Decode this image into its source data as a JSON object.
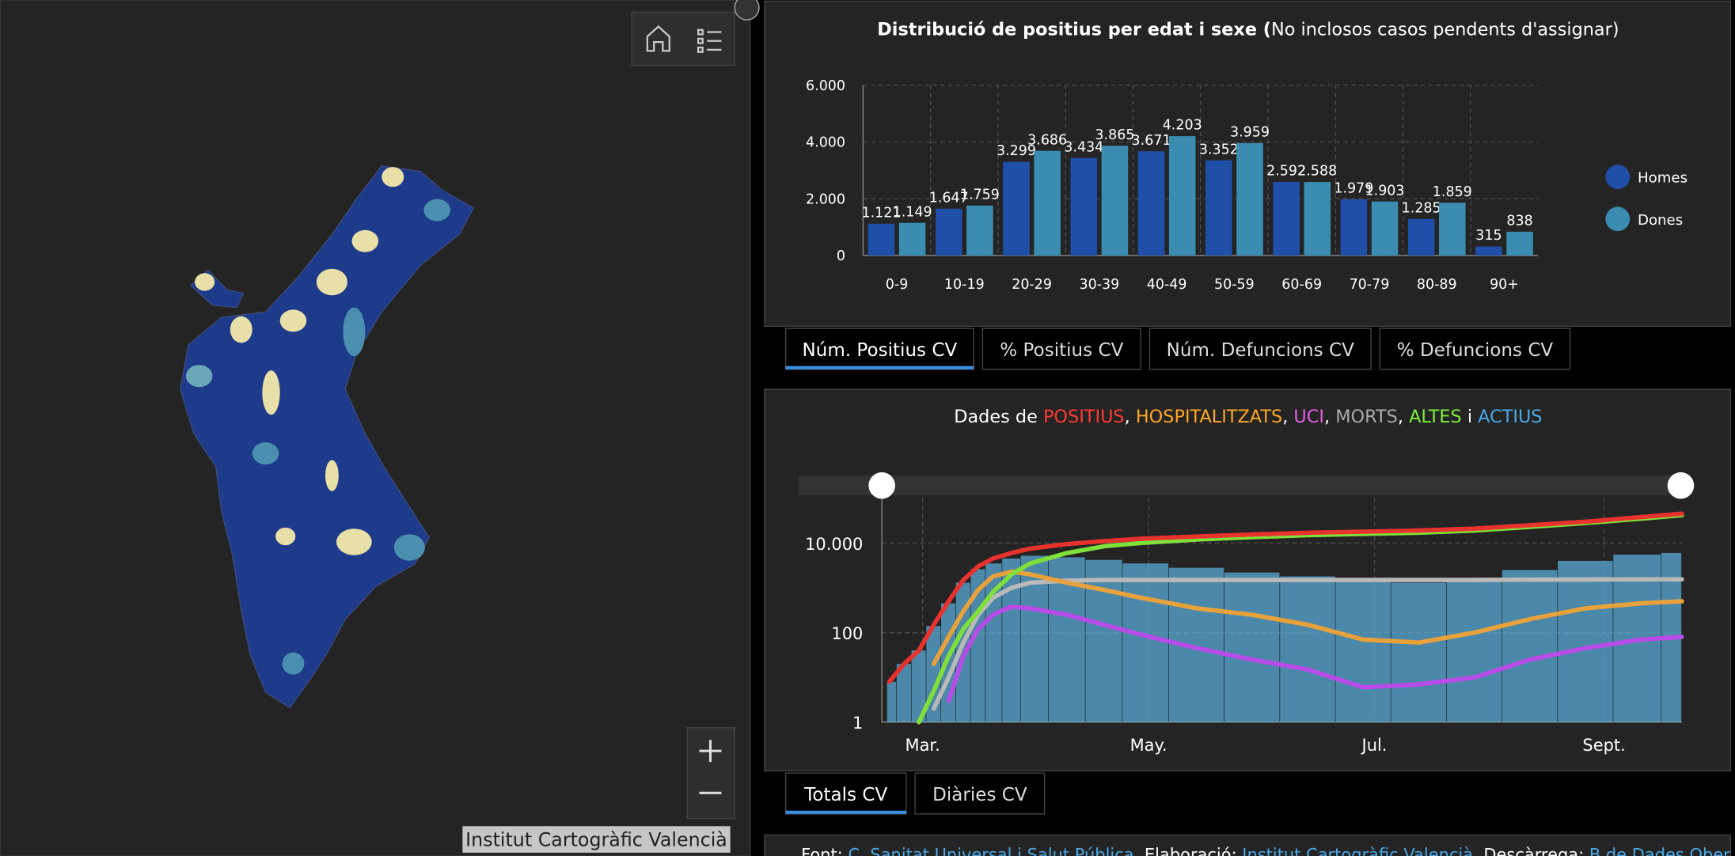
{
  "map": {
    "attribution": "Institut Cartogràfic Valencià"
  },
  "chart_data": [
    {
      "type": "bar",
      "title_bold": "Distribució de positius per edat i sexe (",
      "title_rest": "No inclosos casos pendents d'assignar)",
      "categories": [
        "0-9",
        "10-19",
        "20-29",
        "30-39",
        "40-49",
        "50-59",
        "60-69",
        "70-79",
        "80-89",
        "90+"
      ],
      "series": [
        {
          "name": "Homes",
          "color": "#1f4fa8",
          "values": [
            1121,
            1647,
            3299,
            3434,
            3671,
            3352,
            2592,
            1979,
            1285,
            315
          ],
          "value_labels": [
            "1.121",
            "1.647",
            "3.299",
            "3.434",
            "3.671",
            "3.352",
            "2.592",
            "1.979",
            "1.285",
            "315"
          ]
        },
        {
          "name": "Dones",
          "color": "#3a8db0",
          "values": [
            1149,
            1759,
            3686,
            3865,
            4203,
            3959,
            2588,
            1903,
            1859,
            838
          ],
          "value_labels": [
            "1.149",
            "1.759",
            "3.686",
            "3.865",
            "4.203",
            "3.959",
            "2.588",
            "1.903",
            "1.859",
            "838"
          ]
        }
      ],
      "ylim": [
        0,
        6000
      ],
      "yticks": [
        0,
        {
          "value": 2000,
          "label": "2.000"
        },
        {
          "value": 4000,
          "label": "4.000"
        },
        {
          "value": 6000,
          "label": "6.000"
        }
      ],
      "grid": true,
      "legend": "right"
    },
    {
      "type": "line",
      "title_parts": [
        {
          "text": "Dades de ",
          "color": "#ffffff"
        },
        {
          "text": "POSITIUS",
          "color": "#ff3b30"
        },
        {
          "text": ", ",
          "color": "#ffffff"
        },
        {
          "text": "HOSPITALITZATS",
          "color": "#ffa726"
        },
        {
          "text": ", ",
          "color": "#ffffff"
        },
        {
          "text": "UCI",
          "color": "#e75ce8"
        },
        {
          "text": ", ",
          "color": "#ffffff"
        },
        {
          "text": "MORTS",
          "color": "#aaaaaa"
        },
        {
          "text": ", ",
          "color": "#ffffff"
        },
        {
          "text": "ALTES",
          "color": "#7cf03a"
        },
        {
          "text": " i ",
          "color": "#ffffff"
        },
        {
          "text": "ACTIUS",
          "color": "#4aa8e8"
        }
      ],
      "x": [
        52,
        56,
        60,
        64,
        68,
        72,
        76,
        80,
        85,
        90,
        100,
        110,
        120,
        135,
        150,
        165,
        180,
        195,
        210,
        225,
        240,
        255,
        266
      ],
      "series": [
        {
          "mark": "bar",
          "color": "#5aa9d6",
          "values": [
            8,
            20,
            40,
            140,
            450,
            1300,
            2600,
            3500,
            4500,
            5200,
            4800,
            4200,
            3500,
            2800,
            2200,
            1800,
            1500,
            1300,
            1600,
            2500,
            4000,
            5500,
            6000
          ]
        },
        {
          "color": "#b9b9b9",
          "values": [
            null,
            null,
            null,
            2,
            10,
            60,
            250,
            600,
            1000,
            1300,
            1450,
            1500,
            1500,
            1500,
            1500,
            1500,
            1500,
            1500,
            1500,
            1520,
            1530,
            1540,
            1550
          ]
        },
        {
          "color": "#e9a23b",
          "values": [
            null,
            null,
            null,
            20,
            80,
            300,
            900,
            1800,
            2300,
            2000,
            1300,
            900,
            600,
            350,
            250,
            150,
            70,
            60,
            100,
            200,
            350,
            450,
            500
          ]
        },
        {
          "color": "#b94be8",
          "values": [
            null,
            null,
            null,
            null,
            3,
            30,
            120,
            250,
            380,
            350,
            250,
            150,
            90,
            45,
            25,
            15,
            6,
            7,
            10,
            25,
            45,
            70,
            80
          ]
        },
        {
          "color": "#7fe03a",
          "values": [
            null,
            null,
            1,
            5,
            30,
            120,
            300,
            800,
            2000,
            3500,
            6000,
            8500,
            10000,
            12000,
            13500,
            15000,
            16000,
            17000,
            19000,
            23000,
            28000,
            35000,
            42000
          ]
        },
        {
          "color": "#e8322e",
          "values": [
            8,
            20,
            40,
            150,
            500,
            1500,
            3000,
            4500,
            6000,
            7500,
            9500,
            11000,
            12500,
            14000,
            15500,
            17000,
            18000,
            19000,
            21000,
            25000,
            30000,
            38000,
            45000
          ]
        }
      ],
      "xlim": [
        50,
        266
      ],
      "xticks": [
        {
          "value": 61,
          "label": "Mar."
        },
        {
          "value": 122,
          "label": "May."
        },
        {
          "value": 183,
          "label": "Jul."
        },
        {
          "value": 245,
          "label": "Sept."
        }
      ],
      "ylim": [
        1,
        100000
      ],
      "log_y": true,
      "yticks": [
        1,
        100,
        {
          "value": 10000,
          "label": "10.000"
        }
      ],
      "grid": true
    }
  ],
  "tabs_age": {
    "items": [
      "Núm. Positius CV",
      "% Positius CV",
      "Núm. Defuncions CV",
      "% Defuncions CV"
    ],
    "active": 0
  },
  "tabs_series": {
    "items": [
      "Totals CV",
      "Diàries CV"
    ],
    "active": 0
  },
  "footer": [
    {
      "text": "Font: ",
      "link": false
    },
    {
      "text": "C. Sanitat Universal i Salut Pública",
      "link": true
    },
    {
      "text": ". Elaboració: ",
      "link": false
    },
    {
      "text": "Institut Cartogràfic Valencià",
      "link": true
    },
    {
      "text": ". Descàrrega: ",
      "link": false
    },
    {
      "text": "B.de Dades Obertes",
      "link": true
    }
  ]
}
